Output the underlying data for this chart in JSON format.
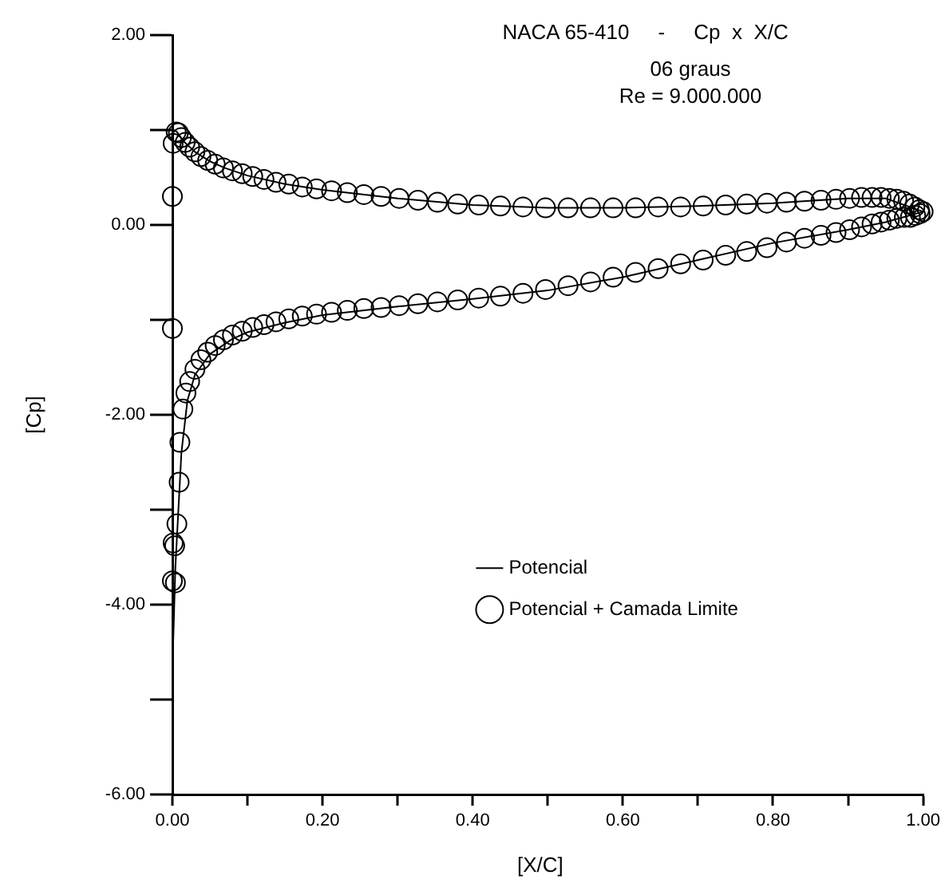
{
  "chart_data": {
    "type": "scatter",
    "title": "NACA 65-410     -     Cp  x  X/C",
    "subtitle": "06 graus",
    "annotations": [
      "Re = 9.000.000"
    ],
    "xlabel": "[X/C]",
    "ylabel": "[Cp]",
    "xlim": [
      0,
      1
    ],
    "xticks": [
      {
        "value": 0,
        "label": "0.00"
      },
      {
        "value": 0.1,
        "label": null
      },
      {
        "value": 0.2,
        "label": "0.20"
      },
      {
        "value": 0.3,
        "label": null
      },
      {
        "value": 0.4,
        "label": "0.40"
      },
      {
        "value": 0.5,
        "label": null
      },
      {
        "value": 0.6,
        "label": "0.60"
      },
      {
        "value": 0.7,
        "label": null
      },
      {
        "value": 0.8,
        "label": "0.80"
      },
      {
        "value": 0.9,
        "label": null
      },
      {
        "value": 1,
        "label": "1.00"
      }
    ],
    "ylim": [
      -6,
      2
    ],
    "yticks": [
      {
        "value": -6,
        "label": "-6.00"
      },
      {
        "value": -5,
        "label": null
      },
      {
        "value": -4,
        "label": "-4.00"
      },
      {
        "value": -3,
        "label": null
      },
      {
        "value": -2,
        "label": "-2.00"
      },
      {
        "value": -1,
        "label": null
      },
      {
        "value": 0,
        "label": "0.00"
      },
      {
        "value": 1,
        "label": null
      },
      {
        "value": 2,
        "label": "2.00"
      }
    ],
    "grid": false,
    "legend": "center",
    "series": [
      {
        "name": "Potencial",
        "type": "line",
        "marker": "none",
        "line_style": "solid",
        "color": "#000000",
        "x": [
          0.002,
          0.006,
          0.015,
          0.03,
          0.05,
          0.07,
          0.1,
          0.15,
          0.2,
          0.3,
          0.4,
          0.5,
          0.6,
          0.7,
          0.8,
          0.9,
          0.95,
          1.0
        ],
        "values": [
          1.0,
          0.98,
          0.88,
          0.77,
          0.67,
          0.6,
          0.52,
          0.43,
          0.37,
          0.28,
          0.21,
          0.18,
          0.18,
          0.2,
          0.23,
          0.28,
          0.28,
          0.14
        ]
      },
      {
        "type": "line",
        "marker": "none",
        "line_style": "solid",
        "color": "#000000",
        "x": [
          0.0,
          0.001,
          0.004,
          0.008,
          0.012,
          0.02,
          0.03,
          0.05,
          0.08,
          0.1,
          0.15,
          0.2,
          0.3,
          0.4,
          0.5,
          0.6,
          0.7,
          0.8,
          0.9,
          0.95,
          1.0
        ],
        "values": [
          1.0,
          -4.41,
          -3.6,
          -3.0,
          -2.4,
          -1.85,
          -1.58,
          -1.36,
          -1.2,
          -1.13,
          -1.03,
          -0.95,
          -0.86,
          -0.78,
          -0.69,
          -0.55,
          -0.37,
          -0.19,
          -0.05,
          0.03,
          0.14
        ]
      },
      {
        "name": "Potencial + Camada Limite",
        "type": "scatter",
        "marker": "circle",
        "color": "#000000",
        "x": [
          0,
          0.001,
          0.005,
          0.008,
          0.012,
          0.017,
          0.023,
          0.03,
          0.038,
          0.047,
          0.057,
          0.068,
          0.08,
          0.093,
          0.107,
          0.122,
          0.138,
          0.155,
          0.173,
          0.192,
          0.212,
          0.233,
          0.255,
          0.278,
          0.302,
          0.327,
          0.353,
          0.38,
          0.408,
          0.437,
          0.467,
          0.497,
          0.527,
          0.557,
          0.587,
          0.617,
          0.647,
          0.677,
          0.707,
          0.737,
          0.765,
          0.792,
          0.818,
          0.842,
          0.864,
          0.884,
          0.902,
          0.918,
          0.932,
          0.944,
          0.955,
          0.965,
          0.974,
          0.982,
          0.989,
          0.995,
          1.0,
          0.996,
          0.99,
          0.983,
          0.975,
          0.965,
          0.955,
          0.944,
          0.932,
          0.918,
          0.902,
          0.884,
          0.864,
          0.842,
          0.818,
          0.792,
          0.765,
          0.737,
          0.707,
          0.677,
          0.647,
          0.617,
          0.587,
          0.557,
          0.527,
          0.497,
          0.467,
          0.437,
          0.408,
          0.38,
          0.353,
          0.327,
          0.302,
          0.278,
          0.255,
          0.233,
          0.212,
          0.192,
          0.173,
          0.155,
          0.138,
          0.122,
          0.107,
          0.093,
          0.08,
          0.068,
          0.057,
          0.047,
          0.038,
          0.03,
          0.023,
          0.018,
          0.014,
          0.01,
          0.009,
          0.006,
          0.003,
          0.004,
          0.001,
          0.0,
          0.0
        ],
        "values": [
          0.3,
          0.86,
          0.98,
          0.97,
          0.92,
          0.87,
          0.82,
          0.77,
          0.72,
          0.68,
          0.64,
          0.6,
          0.57,
          0.54,
          0.51,
          0.48,
          0.45,
          0.43,
          0.4,
          0.38,
          0.36,
          0.34,
          0.32,
          0.3,
          0.28,
          0.26,
          0.24,
          0.22,
          0.21,
          0.2,
          0.19,
          0.18,
          0.18,
          0.18,
          0.18,
          0.18,
          0.19,
          0.19,
          0.2,
          0.21,
          0.22,
          0.23,
          0.24,
          0.25,
          0.26,
          0.27,
          0.28,
          0.29,
          0.29,
          0.29,
          0.28,
          0.27,
          0.25,
          0.22,
          0.19,
          0.16,
          0.14,
          0.12,
          0.1,
          0.08,
          0.08,
          0.07,
          0.05,
          0.03,
          0.01,
          -0.02,
          -0.05,
          -0.08,
          -0.11,
          -0.14,
          -0.18,
          -0.24,
          -0.28,
          -0.32,
          -0.37,
          -0.41,
          -0.46,
          -0.5,
          -0.55,
          -0.6,
          -0.64,
          -0.68,
          -0.72,
          -0.75,
          -0.77,
          -0.79,
          -0.81,
          -0.83,
          -0.85,
          -0.87,
          -0.88,
          -0.9,
          -0.92,
          -0.94,
          -0.96,
          -0.99,
          -1.02,
          -1.05,
          -1.08,
          -1.12,
          -1.16,
          -1.21,
          -1.27,
          -1.34,
          -1.42,
          -1.52,
          -1.65,
          -1.77,
          -1.94,
          -2.29,
          -2.71,
          -3.15,
          -3.38,
          -3.77,
          -3.35,
          -3.75,
          -1.09
        ]
      }
    ]
  }
}
